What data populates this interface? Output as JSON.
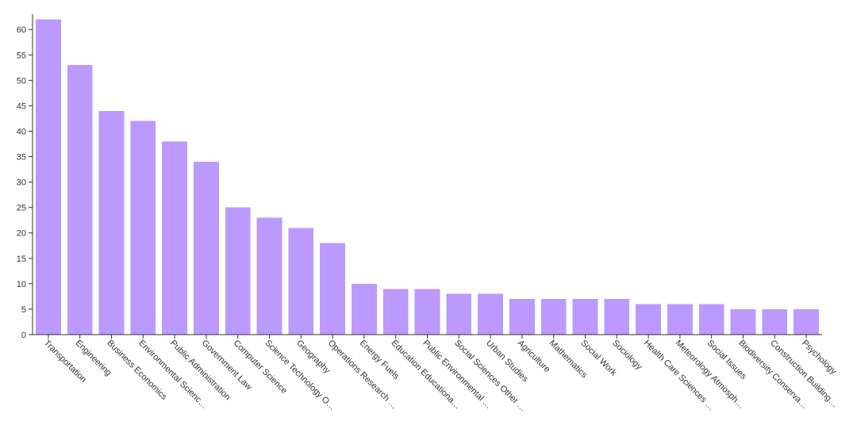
{
  "colors": {
    "bar": "#bb99ff",
    "axis": "#333333"
  },
  "chart_data": {
    "type": "bar",
    "title": "",
    "xlabel": "",
    "ylabel": "",
    "ylim": [
      0,
      63
    ],
    "yticks": [
      0,
      5,
      10,
      15,
      20,
      25,
      30,
      35,
      40,
      45,
      50,
      55,
      60
    ],
    "ytick_labels": [
      "0",
      "5",
      "10",
      "15",
      "20",
      "25",
      "30",
      "35",
      "40",
      "45",
      "50",
      "55",
      "60"
    ],
    "grid": false,
    "legend": "none",
    "categories": [
      "Transportation",
      "Engineering",
      "Business Economics",
      "Environmental Scienc…",
      "Public Administration",
      "Government Law",
      "Computer Science",
      "Science Technology O…",
      "Geography",
      "Operations Research …",
      "Energy Fuels",
      "Education Educationa…",
      "Public Environmental …",
      "Social Sciences Other …",
      "Urban Studies",
      "Agriculture",
      "Mathematics",
      "Social Work",
      "Sociology",
      "Health Care Sciences …",
      "Meteorology Atmosph…",
      "Social Issues",
      "Biodiversity Conserva…",
      "Construction Building…",
      "Psychology"
    ],
    "values": [
      62,
      53,
      44,
      42,
      38,
      34,
      25,
      23,
      21,
      18,
      10,
      9,
      9,
      8,
      8,
      7,
      7,
      7,
      7,
      6,
      6,
      6,
      5,
      5,
      5
    ]
  }
}
